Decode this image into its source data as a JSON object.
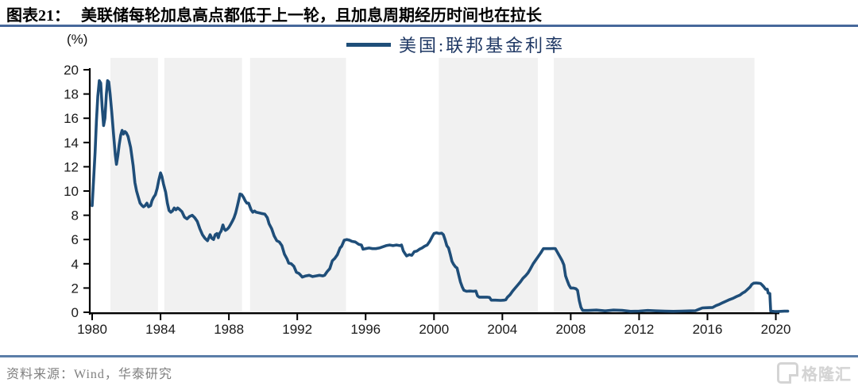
{
  "header": {
    "tag": "图表21：",
    "title": "美联储每轮加息高点都低于上一轮，且加息周期经历时间也在拉长"
  },
  "chart_data": {
    "type": "line",
    "title": "美联储每轮加息高点都低于上一轮，且加息周期经历时间也在拉长",
    "unit_label": "(%)",
    "legend_label": "美国:联邦基金利率",
    "legend_position": "top-center",
    "grid": false,
    "xlabel": "",
    "ylabel": "(%)",
    "xlim": [
      1979.86,
      2020.95
    ],
    "ylim": [
      0,
      20
    ],
    "x_ticks": [
      1980,
      1984,
      1988,
      1992,
      1996,
      2000,
      2004,
      2008,
      2012,
      2016,
      2020
    ],
    "y_ticks": [
      0,
      2,
      4,
      6,
      8,
      10,
      12,
      14,
      16,
      18,
      20
    ],
    "band_color": "#F1F1F1",
    "line_color": "#1F4E79",
    "axis_color": "#000000",
    "shaded_bands": [
      [
        1981.07,
        1983.85
      ],
      [
        1984.22,
        1988.77
      ],
      [
        1989.24,
        1994.85
      ],
      [
        2000.28,
        2006.08
      ],
      [
        2007.01,
        2018.75
      ]
    ],
    "series": [
      {
        "name": "美国:联邦基金利率",
        "points": [
          [
            1980.0,
            8.8
          ],
          [
            1980.08,
            10.8
          ],
          [
            1980.17,
            13.2
          ],
          [
            1980.25,
            15.8
          ],
          [
            1980.33,
            17.8
          ],
          [
            1980.42,
            19.1
          ],
          [
            1980.5,
            18.9
          ],
          [
            1980.58,
            17.0
          ],
          [
            1980.67,
            15.4
          ],
          [
            1980.75,
            16.0
          ],
          [
            1980.83,
            18.0
          ],
          [
            1980.9,
            19.1
          ],
          [
            1980.97,
            19.0
          ],
          [
            1981.05,
            18.0
          ],
          [
            1981.15,
            16.4
          ],
          [
            1981.25,
            14.7
          ],
          [
            1981.35,
            13.0
          ],
          [
            1981.42,
            12.2
          ],
          [
            1981.5,
            12.9
          ],
          [
            1981.58,
            13.8
          ],
          [
            1981.67,
            14.6
          ],
          [
            1981.75,
            15.0
          ],
          [
            1981.83,
            14.7
          ],
          [
            1981.92,
            14.9
          ],
          [
            1982.0,
            14.8
          ],
          [
            1982.1,
            14.5
          ],
          [
            1982.25,
            13.6
          ],
          [
            1982.4,
            12.1
          ],
          [
            1982.5,
            10.7
          ],
          [
            1982.6,
            10.0
          ],
          [
            1982.7,
            9.5
          ],
          [
            1982.8,
            9.0
          ],
          [
            1982.92,
            8.8
          ],
          [
            1983.0,
            8.7
          ],
          [
            1983.1,
            8.8
          ],
          [
            1983.2,
            9.0
          ],
          [
            1983.3,
            8.7
          ],
          [
            1983.42,
            8.8
          ],
          [
            1983.5,
            9.2
          ],
          [
            1983.6,
            9.5
          ],
          [
            1983.7,
            9.7
          ],
          [
            1983.8,
            10.2
          ],
          [
            1983.9,
            10.9
          ],
          [
            1984.0,
            11.5
          ],
          [
            1984.08,
            11.2
          ],
          [
            1984.17,
            10.6
          ],
          [
            1984.3,
            9.9
          ],
          [
            1984.4,
            9.0
          ],
          [
            1984.5,
            8.4
          ],
          [
            1984.6,
            8.25
          ],
          [
            1984.7,
            8.35
          ],
          [
            1984.8,
            8.6
          ],
          [
            1984.9,
            8.45
          ],
          [
            1985.0,
            8.6
          ],
          [
            1985.1,
            8.5
          ],
          [
            1985.25,
            8.3
          ],
          [
            1985.4,
            7.85
          ],
          [
            1985.55,
            7.7
          ],
          [
            1985.7,
            7.9
          ],
          [
            1985.85,
            8.0
          ],
          [
            1986.0,
            7.8
          ],
          [
            1986.15,
            7.5
          ],
          [
            1986.3,
            6.9
          ],
          [
            1986.45,
            6.4
          ],
          [
            1986.6,
            6.1
          ],
          [
            1986.75,
            5.9
          ],
          [
            1986.9,
            6.4
          ],
          [
            1987.0,
            6.1
          ],
          [
            1987.1,
            6.0
          ],
          [
            1987.2,
            6.4
          ],
          [
            1987.3,
            6.5
          ],
          [
            1987.38,
            6.15
          ],
          [
            1987.45,
            6.5
          ],
          [
            1987.55,
            6.7
          ],
          [
            1987.65,
            7.2
          ],
          [
            1987.72,
            6.9
          ],
          [
            1987.8,
            6.75
          ],
          [
            1987.9,
            6.85
          ],
          [
            1988.0,
            7.0
          ],
          [
            1988.1,
            7.25
          ],
          [
            1988.2,
            7.5
          ],
          [
            1988.3,
            7.8
          ],
          [
            1988.4,
            8.2
          ],
          [
            1988.5,
            8.8
          ],
          [
            1988.6,
            9.4
          ],
          [
            1988.65,
            9.75
          ],
          [
            1988.75,
            9.7
          ],
          [
            1988.85,
            9.5
          ],
          [
            1988.95,
            9.2
          ],
          [
            1989.05,
            9.0
          ],
          [
            1989.15,
            9.0
          ],
          [
            1989.3,
            8.45
          ],
          [
            1989.4,
            8.25
          ],
          [
            1989.5,
            8.35
          ],
          [
            1989.6,
            8.25
          ],
          [
            1989.75,
            8.2
          ],
          [
            1989.9,
            8.15
          ],
          [
            1990.1,
            8.1
          ],
          [
            1990.25,
            7.8
          ],
          [
            1990.35,
            7.3
          ],
          [
            1990.5,
            6.9
          ],
          [
            1990.65,
            6.3
          ],
          [
            1990.8,
            5.9
          ],
          [
            1990.95,
            5.8
          ],
          [
            1991.1,
            5.5
          ],
          [
            1991.25,
            4.8
          ],
          [
            1991.4,
            4.4
          ],
          [
            1991.5,
            4.05
          ],
          [
            1991.65,
            4.0
          ],
          [
            1991.8,
            3.8
          ],
          [
            1991.95,
            3.3
          ],
          [
            1992.1,
            3.2
          ],
          [
            1992.2,
            3.05
          ],
          [
            1992.3,
            2.9
          ],
          [
            1992.5,
            3.0
          ],
          [
            1992.7,
            3.05
          ],
          [
            1992.9,
            2.95
          ],
          [
            1993.1,
            3.0
          ],
          [
            1993.3,
            3.05
          ],
          [
            1993.5,
            3.0
          ],
          [
            1993.6,
            3.05
          ],
          [
            1993.75,
            3.35
          ],
          [
            1993.9,
            3.6
          ],
          [
            1994.05,
            4.25
          ],
          [
            1994.2,
            4.45
          ],
          [
            1994.35,
            4.75
          ],
          [
            1994.5,
            5.3
          ],
          [
            1994.6,
            5.45
          ],
          [
            1994.75,
            5.95
          ],
          [
            1994.9,
            6.0
          ],
          [
            1995.05,
            5.95
          ],
          [
            1995.2,
            5.85
          ],
          [
            1995.4,
            5.8
          ],
          [
            1995.6,
            5.6
          ],
          [
            1995.75,
            5.55
          ],
          [
            1995.85,
            5.2
          ],
          [
            1996.0,
            5.25
          ],
          [
            1996.2,
            5.3
          ],
          [
            1996.4,
            5.25
          ],
          [
            1996.6,
            5.25
          ],
          [
            1996.8,
            5.3
          ],
          [
            1997.0,
            5.4
          ],
          [
            1997.2,
            5.5
          ],
          [
            1997.4,
            5.55
          ],
          [
            1997.6,
            5.5
          ],
          [
            1997.8,
            5.55
          ],
          [
            1998.0,
            5.5
          ],
          [
            1998.1,
            5.55
          ],
          [
            1998.2,
            5.07
          ],
          [
            1998.3,
            4.85
          ],
          [
            1998.4,
            4.65
          ],
          [
            1998.55,
            4.75
          ],
          [
            1998.7,
            4.7
          ],
          [
            1998.85,
            5.0
          ],
          [
            1999.0,
            5.05
          ],
          [
            1999.15,
            5.2
          ],
          [
            1999.3,
            5.3
          ],
          [
            1999.45,
            5.45
          ],
          [
            1999.6,
            5.55
          ],
          [
            1999.75,
            5.85
          ],
          [
            1999.9,
            6.25
          ],
          [
            2000.0,
            6.5
          ],
          [
            2000.15,
            6.55
          ],
          [
            2000.3,
            6.5
          ],
          [
            2000.45,
            6.52
          ],
          [
            2000.55,
            6.4
          ],
          [
            2000.65,
            5.98
          ],
          [
            2000.75,
            5.5
          ],
          [
            2000.85,
            5.3
          ],
          [
            2000.95,
            4.8
          ],
          [
            2001.05,
            4.2
          ],
          [
            2001.15,
            3.95
          ],
          [
            2001.25,
            3.75
          ],
          [
            2001.35,
            3.65
          ],
          [
            2001.45,
            3.05
          ],
          [
            2001.55,
            2.5
          ],
          [
            2001.65,
            2.1
          ],
          [
            2001.75,
            1.82
          ],
          [
            2001.9,
            1.73
          ],
          [
            2002.1,
            1.75
          ],
          [
            2002.3,
            1.73
          ],
          [
            2002.45,
            1.75
          ],
          [
            2002.55,
            1.35
          ],
          [
            2002.65,
            1.25
          ],
          [
            2002.9,
            1.25
          ],
          [
            2003.1,
            1.25
          ],
          [
            2003.25,
            1.22
          ],
          [
            2003.35,
            1.0
          ],
          [
            2003.6,
            1.0
          ],
          [
            2003.9,
            0.98
          ],
          [
            2004.1,
            1.0
          ],
          [
            2004.2,
            1.03
          ],
          [
            2004.3,
            1.25
          ],
          [
            2004.45,
            1.45
          ],
          [
            2004.6,
            1.75
          ],
          [
            2004.75,
            2.0
          ],
          [
            2004.9,
            2.25
          ],
          [
            2005.05,
            2.5
          ],
          [
            2005.2,
            2.8
          ],
          [
            2005.35,
            3.0
          ],
          [
            2005.5,
            3.25
          ],
          [
            2005.65,
            3.6
          ],
          [
            2005.8,
            4.0
          ],
          [
            2005.95,
            4.3
          ],
          [
            2006.1,
            4.6
          ],
          [
            2006.25,
            4.9
          ],
          [
            2006.4,
            5.25
          ],
          [
            2006.6,
            5.25
          ],
          [
            2006.8,
            5.25
          ],
          [
            2007.0,
            5.26
          ],
          [
            2007.1,
            5.25
          ],
          [
            2007.2,
            5.0
          ],
          [
            2007.3,
            4.75
          ],
          [
            2007.4,
            4.5
          ],
          [
            2007.5,
            4.25
          ],
          [
            2007.6,
            3.9
          ],
          [
            2007.7,
            3.0
          ],
          [
            2007.8,
            2.6
          ],
          [
            2007.9,
            2.25
          ],
          [
            2008.0,
            2.0
          ],
          [
            2008.15,
            2.0
          ],
          [
            2008.3,
            1.95
          ],
          [
            2008.4,
            1.8
          ],
          [
            2008.5,
            0.95
          ],
          [
            2008.6,
            0.4
          ],
          [
            2008.7,
            0.15
          ],
          [
            2009.0,
            0.15
          ],
          [
            2009.5,
            0.18
          ],
          [
            2010.0,
            0.12
          ],
          [
            2010.5,
            0.18
          ],
          [
            2011.0,
            0.16
          ],
          [
            2011.5,
            0.08
          ],
          [
            2012.0,
            0.1
          ],
          [
            2012.5,
            0.15
          ],
          [
            2013.0,
            0.12
          ],
          [
            2013.5,
            0.09
          ],
          [
            2014.0,
            0.08
          ],
          [
            2014.5,
            0.1
          ],
          [
            2015.0,
            0.12
          ],
          [
            2015.3,
            0.13
          ],
          [
            2015.5,
            0.25
          ],
          [
            2015.7,
            0.36
          ],
          [
            2016.0,
            0.38
          ],
          [
            2016.3,
            0.4
          ],
          [
            2016.5,
            0.55
          ],
          [
            2016.7,
            0.66
          ],
          [
            2016.9,
            0.8
          ],
          [
            2017.1,
            0.92
          ],
          [
            2017.3,
            1.05
          ],
          [
            2017.5,
            1.16
          ],
          [
            2017.7,
            1.3
          ],
          [
            2017.9,
            1.42
          ],
          [
            2018.05,
            1.58
          ],
          [
            2018.2,
            1.7
          ],
          [
            2018.35,
            1.9
          ],
          [
            2018.5,
            2.1
          ],
          [
            2018.6,
            2.3
          ],
          [
            2018.7,
            2.4
          ],
          [
            2018.85,
            2.42
          ],
          [
            2019.0,
            2.4
          ],
          [
            2019.1,
            2.38
          ],
          [
            2019.2,
            2.25
          ],
          [
            2019.3,
            2.1
          ],
          [
            2019.4,
            1.9
          ],
          [
            2019.5,
            1.9
          ],
          [
            2019.55,
            1.58
          ],
          [
            2019.65,
            1.55
          ],
          [
            2019.7,
            0.1
          ],
          [
            2019.9,
            0.07
          ],
          [
            2020.1,
            0.06
          ],
          [
            2020.3,
            0.08
          ],
          [
            2020.5,
            0.09
          ],
          [
            2020.7,
            0.09
          ]
        ]
      }
    ]
  },
  "footer": {
    "source": "资料来源：Wind，华泰研究",
    "watermark": "格隆汇",
    "watermark_icon": "G"
  }
}
